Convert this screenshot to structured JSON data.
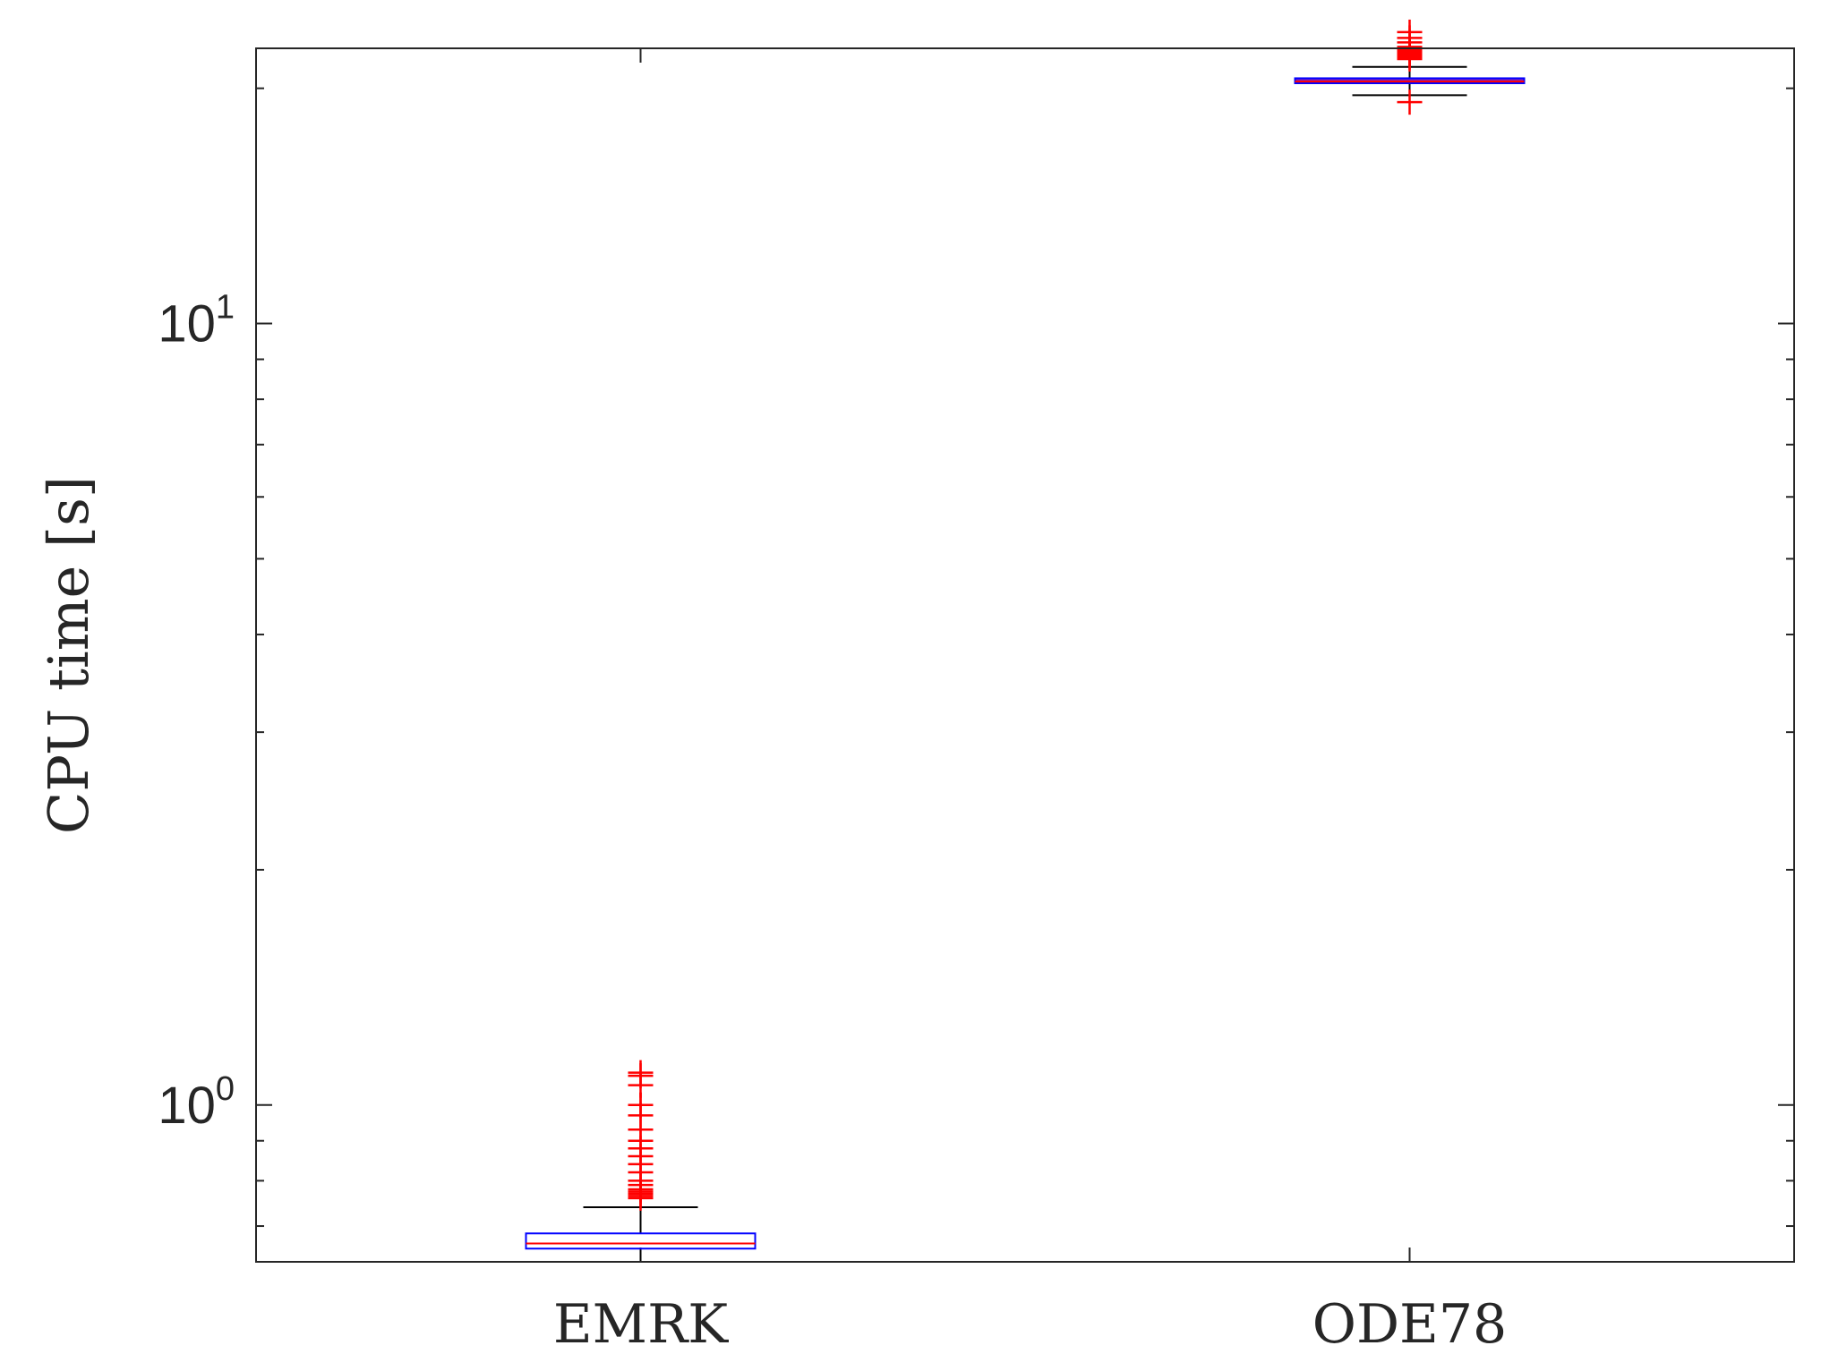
{
  "chart_data": {
    "type": "box",
    "ylabel": "CPU time [s]",
    "yscale": "log",
    "ylim": [
      0.63,
      22.5
    ],
    "yticks": [
      {
        "base": "10",
        "exp": "0",
        "value": 1
      },
      {
        "base": "10",
        "exp": "1",
        "value": 10
      }
    ],
    "categories": [
      "EMRK",
      "ODE78"
    ],
    "boxes": [
      {
        "name": "EMRK",
        "q1": 0.655,
        "median": 0.665,
        "q3": 0.685,
        "whisker_low": 0.63,
        "whisker_high": 0.74,
        "outliers": [
          0.76,
          0.765,
          0.77,
          0.775,
          0.78,
          0.79,
          0.8,
          0.82,
          0.84,
          0.86,
          0.88,
          0.9,
          0.93,
          0.97,
          1.0,
          1.0,
          1.06,
          1.09,
          1.1
        ]
      },
      {
        "name": "ODE78",
        "q1": 20.3,
        "median": 20.4,
        "q3": 20.6,
        "whisker_low": 19.6,
        "whisker_high": 21.3,
        "outliers": [
          19.2,
          21.8,
          21.9,
          22.0,
          22.1,
          22.2,
          22.3,
          22.4,
          22.6,
          22.9,
          23.2,
          23.6,
          24.0,
          24.6,
          25.3,
          26.0
        ]
      }
    ],
    "colors": {
      "box": "#0000ff",
      "median": "#ff0000",
      "whisker": "#000000",
      "outlier": "#ff0000",
      "axis": "#262626",
      "box_fill_ode78": "#7f1fbf"
    }
  }
}
